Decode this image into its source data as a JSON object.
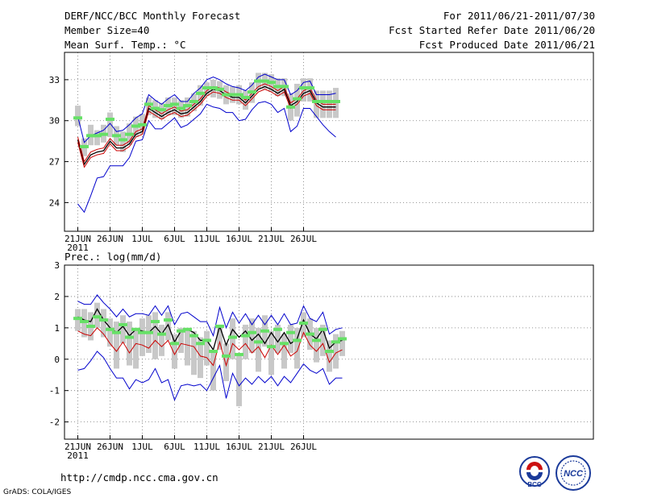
{
  "header": {
    "title": "DERF/NCC/BCC Monthly Forecast",
    "member_size": "Member Size=40",
    "variable": "Mean Surf. Temp.: °C",
    "for_range": "For 2011/06/21-2011/07/30",
    "started": "Fcst Started Refer Date 2011/06/20",
    "produced": "Fcst Produced Date 2011/06/21"
  },
  "footer": {
    "url": "http://cmdp.ncc.cma.gov.cn",
    "grads": "GrADS: COLA/IGES",
    "logo_bcc": "BCC",
    "logo_ncc": "NCC"
  },
  "colors": {
    "ensemble_mean": "#000000",
    "member_band": "#cc0000",
    "extreme_bounds": "#0000cc",
    "member_mark": "#66e066",
    "spread_bar": "#c8c8c8"
  },
  "chart_data": [
    {
      "type": "line",
      "title": "Mean Surf. Temp.: °C",
      "x_tick_labels": [
        "21JUN",
        "26JUN",
        "1JUL",
        "6JUL",
        "11JUL",
        "16JUL",
        "21JUL",
        "26JUL"
      ],
      "x_tick_days": [
        0,
        5,
        10,
        15,
        20,
        25,
        30,
        35
      ],
      "x_sublabel": "2011",
      "ylim": [
        21.9,
        35.0
      ],
      "yticks": [
        24,
        27,
        30,
        33
      ],
      "series": [
        {
          "name": "ensemble-mean",
          "values": [
            28.6,
            26.8,
            27.5,
            27.7,
            27.8,
            28.5,
            28.0,
            28.0,
            28.3,
            29.0,
            29.2,
            30.9,
            30.6,
            30.3,
            30.6,
            30.8,
            30.5,
            30.6,
            31.0,
            31.4,
            32.0,
            32.3,
            32.2,
            31.9,
            31.7,
            31.7,
            31.3,
            31.8,
            32.3,
            32.5,
            32.3,
            32.0,
            32.3,
            31.1,
            31.4,
            32.0,
            32.2,
            31.3,
            31.0,
            31.0,
            31.0
          ]
        },
        {
          "name": "upper-member",
          "values": [
            28.8,
            27.0,
            27.7,
            27.9,
            28.0,
            28.7,
            28.2,
            28.2,
            28.5,
            29.2,
            29.4,
            31.1,
            30.8,
            30.5,
            30.8,
            31.0,
            30.7,
            30.8,
            31.2,
            31.6,
            32.2,
            32.5,
            32.4,
            32.1,
            31.9,
            31.9,
            31.5,
            32.0,
            32.5,
            32.7,
            32.5,
            32.2,
            32.5,
            31.3,
            31.6,
            32.2,
            32.4,
            31.5,
            31.2,
            31.2,
            31.2
          ]
        },
        {
          "name": "lower-member",
          "values": [
            28.4,
            26.6,
            27.3,
            27.5,
            27.6,
            28.3,
            27.8,
            27.8,
            28.1,
            28.8,
            29.0,
            30.7,
            30.4,
            30.1,
            30.4,
            30.6,
            30.3,
            30.4,
            30.8,
            31.2,
            31.8,
            32.1,
            32.0,
            31.7,
            31.5,
            31.5,
            31.1,
            31.6,
            32.1,
            32.3,
            32.1,
            31.8,
            32.1,
            30.9,
            31.2,
            31.8,
            32.0,
            31.1,
            30.8,
            30.8,
            30.8
          ]
        },
        {
          "name": "maximum",
          "values": [
            30.3,
            28.4,
            28.9,
            29.1,
            29.3,
            29.8,
            29.2,
            29.3,
            29.7,
            30.2,
            30.5,
            31.9,
            31.5,
            31.2,
            31.6,
            31.9,
            31.4,
            31.4,
            32.0,
            32.4,
            33.0,
            33.2,
            33.0,
            32.7,
            32.5,
            32.4,
            32.2,
            32.6,
            33.2,
            33.4,
            33.2,
            33.0,
            33.0,
            31.9,
            32.2,
            32.8,
            32.9,
            31.9,
            31.9,
            31.9,
            32.0
          ]
        },
        {
          "name": "minimum",
          "values": [
            23.9,
            23.3,
            24.5,
            25.8,
            25.9,
            26.7,
            26.7,
            26.7,
            27.3,
            28.5,
            28.6,
            30.0,
            29.4,
            29.4,
            29.8,
            30.2,
            29.5,
            29.7,
            30.1,
            30.5,
            31.2,
            31.0,
            30.9,
            30.6,
            30.6,
            30.0,
            30.1,
            30.8,
            31.3,
            31.4,
            31.2,
            30.6,
            30.9,
            29.2,
            29.6,
            30.9,
            30.9,
            30.3,
            29.7,
            29.2,
            28.8
          ]
        },
        {
          "name": "member-mark",
          "values": [
            30.2,
            28.1,
            28.9,
            28.9,
            29.0,
            30.1,
            28.9,
            28.6,
            29.0,
            29.6,
            29.7,
            31.2,
            30.9,
            30.8,
            31.1,
            31.2,
            30.9,
            31.1,
            31.4,
            32.0,
            32.4,
            32.4,
            32.3,
            31.9,
            31.9,
            31.9,
            31.7,
            32.1,
            32.9,
            32.9,
            32.8,
            32.5,
            32.5,
            31.0,
            31.6,
            32.4,
            32.4,
            31.4,
            31.4,
            31.4,
            31.4
          ]
        }
      ],
      "spread_bars": [
        [
          29.6,
          31.1
        ],
        [
          27.4,
          28.7
        ],
        [
          28.2,
          29.7
        ],
        [
          28.2,
          29.3
        ],
        [
          28.4,
          29.7
        ],
        [
          28.8,
          30.6
        ],
        [
          28.2,
          29.6
        ],
        [
          27.7,
          29.2
        ],
        [
          28.2,
          29.8
        ],
        [
          28.8,
          30.3
        ],
        [
          29.0,
          30.5
        ],
        [
          30.4,
          31.7
        ],
        [
          30.2,
          31.5
        ],
        [
          30.1,
          31.3
        ],
        [
          30.4,
          31.7
        ],
        [
          30.4,
          31.7
        ],
        [
          30.2,
          31.5
        ],
        [
          30.3,
          31.7
        ],
        [
          30.7,
          32.0
        ],
        [
          31.1,
          32.6
        ],
        [
          31.8,
          32.8
        ],
        [
          31.7,
          33.0
        ],
        [
          31.6,
          32.9
        ],
        [
          31.2,
          32.6
        ],
        [
          31.3,
          32.5
        ],
        [
          31.2,
          32.6
        ],
        [
          30.8,
          32.2
        ],
        [
          31.3,
          32.8
        ],
        [
          32.3,
          33.5
        ],
        [
          32.3,
          33.5
        ],
        [
          32.1,
          33.4
        ],
        [
          31.8,
          33.1
        ],
        [
          31.8,
          33.1
        ],
        [
          30.0,
          32.0
        ],
        [
          30.3,
          32.7
        ],
        [
          31.4,
          33.1
        ],
        [
          31.4,
          33.1
        ],
        [
          30.2,
          32.2
        ],
        [
          30.2,
          32.2
        ],
        [
          30.2,
          32.2
        ],
        [
          30.2,
          32.4
        ]
      ]
    },
    {
      "type": "line",
      "title": "Prec.: log(mm/d)",
      "x_tick_labels": [
        "21JUN",
        "26JUN",
        "1JUL",
        "6JUL",
        "11JUL",
        "16JUL",
        "21JUL",
        "26JUL"
      ],
      "x_tick_days": [
        0,
        5,
        10,
        15,
        20,
        25,
        30,
        35
      ],
      "x_sublabel": "2011",
      "ylim": [
        -2.55,
        3.0
      ],
      "yticks": [
        -2,
        -1,
        0,
        1,
        2,
        3
      ],
      "series": [
        {
          "name": "ensemble-mean",
          "values": [
            1.35,
            1.25,
            1.2,
            1.6,
            1.25,
            1.0,
            0.85,
            1.05,
            0.75,
            0.95,
            0.9,
            0.85,
            1.05,
            0.8,
            1.1,
            0.55,
            0.9,
            0.95,
            0.85,
            0.6,
            0.6,
            0.3,
            1.05,
            0.45,
            0.95,
            0.7,
            0.9,
            0.6,
            0.8,
            0.5,
            0.85,
            0.55,
            0.85,
            0.5,
            0.65,
            1.25,
            0.8,
            0.65,
            0.95,
            0.35,
            0.55,
            0.6
          ]
        },
        {
          "name": "lower-member",
          "values": [
            0.9,
            0.8,
            0.75,
            1.0,
            0.8,
            0.5,
            0.25,
            0.55,
            0.2,
            0.5,
            0.45,
            0.35,
            0.6,
            0.4,
            0.6,
            0.15,
            0.5,
            0.45,
            0.4,
            0.1,
            0.05,
            -0.2,
            0.55,
            -0.2,
            0.5,
            0.3,
            0.5,
            0.2,
            0.4,
            0.05,
            0.45,
            0.15,
            0.45,
            0.1,
            0.25,
            0.85,
            0.45,
            0.25,
            0.5,
            -0.1,
            0.2,
            0.3
          ]
        },
        {
          "name": "maximum",
          "values": [
            1.85,
            1.75,
            1.75,
            2.05,
            1.8,
            1.6,
            1.35,
            1.6,
            1.35,
            1.45,
            1.45,
            1.4,
            1.7,
            1.4,
            1.7,
            1.1,
            1.45,
            1.5,
            1.35,
            1.2,
            1.2,
            0.75,
            1.65,
            1.0,
            1.5,
            1.15,
            1.45,
            1.1,
            1.4,
            1.1,
            1.4,
            1.1,
            1.45,
            1.1,
            1.15,
            1.7,
            1.3,
            1.2,
            1.5,
            0.8,
            0.95,
            1.0
          ]
        },
        {
          "name": "minimum",
          "values": [
            -0.35,
            -0.3,
            -0.05,
            0.25,
            0.05,
            -0.3,
            -0.6,
            -0.6,
            -0.95,
            -0.65,
            -0.75,
            -0.65,
            -0.3,
            -0.75,
            -0.65,
            -1.3,
            -0.85,
            -0.8,
            -0.85,
            -0.8,
            -1.0,
            -0.6,
            -0.2,
            -1.25,
            -0.45,
            -0.85,
            -0.6,
            -0.8,
            -0.55,
            -0.75,
            -0.55,
            -0.85,
            -0.55,
            -0.75,
            -0.45,
            -0.15,
            -0.35,
            -0.45,
            -0.3,
            -0.8,
            -0.6,
            -0.6
          ]
        },
        {
          "name": "member-mark",
          "values": [
            1.3,
            1.2,
            1.05,
            1.35,
            1.25,
            0.95,
            0.85,
            1.1,
            0.7,
            0.95,
            0.85,
            0.85,
            1.2,
            0.8,
            1.25,
            0.5,
            0.9,
            0.95,
            0.75,
            0.5,
            0.6,
            0.25,
            1.05,
            0.1,
            0.7,
            0.15,
            0.75,
            0.85,
            0.55,
            0.9,
            0.4,
            0.95,
            0.5,
            0.85,
            0.6,
            1.15,
            0.8,
            0.6,
            0.95,
            0.25,
            0.55,
            0.65
          ]
        }
      ],
      "spread_bars": [
        [
          0.9,
          1.6
        ],
        [
          0.7,
          1.6
        ],
        [
          0.6,
          1.5
        ],
        [
          1.0,
          1.8
        ],
        [
          0.7,
          1.6
        ],
        [
          0.4,
          1.3
        ],
        [
          -0.3,
          1.2
        ],
        [
          0.5,
          1.4
        ],
        [
          -0.2,
          1.2
        ],
        [
          -0.3,
          1.0
        ],
        [
          0.1,
          1.3
        ],
        [
          0.2,
          1.4
        ],
        [
          0.0,
          1.5
        ],
        [
          0.1,
          1.1
        ],
        [
          0.6,
          1.5
        ],
        [
          -0.3,
          0.8
        ],
        [
          0.2,
          1.0
        ],
        [
          -0.2,
          1.0
        ],
        [
          -0.5,
          0.9
        ],
        [
          -0.6,
          0.7
        ],
        [
          -0.2,
          0.9
        ],
        [
          -1.0,
          0.3
        ],
        [
          0.3,
          1.1
        ],
        [
          -0.7,
          0.5
        ],
        [
          0.0,
          1.3
        ],
        [
          -1.5,
          0.2
        ],
        [
          0.0,
          1.1
        ],
        [
          0.2,
          1.3
        ],
        [
          -0.4,
          1.0
        ],
        [
          0.4,
          1.4
        ],
        [
          -0.5,
          0.9
        ],
        [
          0.2,
          1.1
        ],
        [
          -0.3,
          0.8
        ],
        [
          0.2,
          1.1
        ],
        [
          -0.3,
          1.0
        ],
        [
          0.7,
          1.5
        ],
        [
          0.3,
          1.3
        ],
        [
          -0.1,
          1.0
        ],
        [
          0.1,
          1.1
        ],
        [
          -0.4,
          0.6
        ],
        [
          -0.3,
          0.8
        ],
        [
          0.1,
          0.9
        ]
      ]
    }
  ]
}
